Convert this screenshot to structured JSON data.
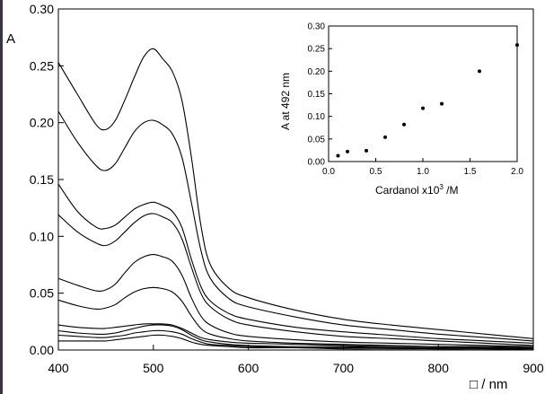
{
  "chart_data": [
    {
      "type": "line",
      "title": "",
      "xlabel": "□ / nm",
      "ylabel": "A",
      "xlim": [
        400,
        900
      ],
      "ylim": [
        0,
        0.3
      ],
      "x_ticks": [
        "400",
        "500",
        "600",
        "700",
        "800",
        "900"
      ],
      "y_ticks": [
        "0.00",
        "0.05",
        "0.10",
        "0.15",
        "0.20",
        "0.25",
        "0.30"
      ],
      "grid": false,
      "legend": "none",
      "series": [
        {
          "x": [
            400,
            420,
            440,
            450,
            460,
            470,
            480,
            490,
            500,
            510,
            520,
            530,
            540,
            550,
            560,
            580,
            600,
            650,
            700,
            750,
            800,
            850,
            900
          ],
          "values": [
            0.253,
            0.225,
            0.198,
            0.194,
            0.202,
            0.22,
            0.24,
            0.258,
            0.265,
            0.256,
            0.245,
            0.22,
            0.17,
            0.11,
            0.075,
            0.054,
            0.046,
            0.035,
            0.027,
            0.022,
            0.018,
            0.014,
            0.01
          ]
        },
        {
          "x": [
            400,
            420,
            440,
            450,
            460,
            470,
            480,
            490,
            500,
            510,
            520,
            530,
            540,
            550,
            560,
            580,
            600,
            650,
            700,
            750,
            800,
            850,
            900
          ],
          "values": [
            0.21,
            0.183,
            0.162,
            0.158,
            0.164,
            0.178,
            0.192,
            0.2,
            0.202,
            0.198,
            0.19,
            0.17,
            0.13,
            0.088,
            0.063,
            0.045,
            0.038,
            0.029,
            0.022,
            0.018,
            0.014,
            0.011,
            0.008
          ]
        },
        {
          "x": [
            400,
            420,
            440,
            450,
            460,
            470,
            480,
            490,
            500,
            510,
            520,
            530,
            540,
            550,
            560,
            580,
            600,
            650,
            700,
            750,
            800,
            850,
            900
          ],
          "values": [
            0.146,
            0.122,
            0.108,
            0.107,
            0.11,
            0.117,
            0.124,
            0.128,
            0.13,
            0.127,
            0.122,
            0.108,
            0.08,
            0.056,
            0.043,
            0.032,
            0.027,
            0.02,
            0.016,
            0.013,
            0.01,
            0.008,
            0.006
          ]
        },
        {
          "x": [
            400,
            420,
            440,
            450,
            460,
            470,
            480,
            490,
            500,
            510,
            520,
            530,
            540,
            550,
            560,
            580,
            600,
            650,
            700,
            750,
            800,
            850,
            900
          ],
          "values": [
            0.119,
            0.104,
            0.094,
            0.092,
            0.096,
            0.104,
            0.112,
            0.118,
            0.12,
            0.117,
            0.112,
            0.098,
            0.073,
            0.05,
            0.038,
            0.027,
            0.022,
            0.016,
            0.012,
            0.01,
            0.008,
            0.006,
            0.004
          ]
        },
        {
          "x": [
            400,
            420,
            440,
            450,
            460,
            470,
            480,
            490,
            500,
            510,
            520,
            530,
            540,
            550,
            560,
            580,
            600,
            650,
            700,
            750,
            800,
            850,
            900
          ],
          "values": [
            0.063,
            0.057,
            0.052,
            0.053,
            0.058,
            0.068,
            0.077,
            0.082,
            0.084,
            0.082,
            0.078,
            0.066,
            0.046,
            0.03,
            0.022,
            0.015,
            0.012,
            0.009,
            0.007,
            0.006,
            0.005,
            0.004,
            0.003
          ]
        },
        {
          "x": [
            400,
            420,
            440,
            450,
            460,
            470,
            480,
            490,
            500,
            510,
            520,
            530,
            540,
            550,
            560,
            580,
            600,
            650,
            700,
            750,
            800,
            850,
            900
          ],
          "values": [
            0.044,
            0.039,
            0.036,
            0.037,
            0.04,
            0.046,
            0.051,
            0.054,
            0.055,
            0.054,
            0.051,
            0.043,
            0.03,
            0.019,
            0.014,
            0.01,
            0.008,
            0.006,
            0.005,
            0.004,
            0.003,
            0.003,
            0.002
          ]
        },
        {
          "x": [
            400,
            420,
            440,
            450,
            460,
            470,
            480,
            490,
            500,
            510,
            520,
            530,
            540,
            550,
            560,
            580,
            600,
            650,
            700,
            750,
            800,
            850,
            900
          ],
          "values": [
            0.022,
            0.02,
            0.019,
            0.019,
            0.02,
            0.021,
            0.022,
            0.023,
            0.023,
            0.023,
            0.022,
            0.019,
            0.015,
            0.011,
            0.009,
            0.007,
            0.006,
            0.005,
            0.004,
            0.003,
            0.003,
            0.002,
            0.002
          ]
        },
        {
          "x": [
            400,
            420,
            440,
            450,
            460,
            470,
            480,
            490,
            500,
            510,
            520,
            530,
            540,
            550,
            560,
            580,
            600,
            650,
            700,
            750,
            800,
            850,
            900
          ],
          "values": [
            0.017,
            0.015,
            0.014,
            0.014,
            0.015,
            0.017,
            0.019,
            0.021,
            0.022,
            0.022,
            0.021,
            0.018,
            0.013,
            0.009,
            0.007,
            0.005,
            0.004,
            0.003,
            0.003,
            0.002,
            0.002,
            0.002,
            0.001
          ]
        },
        {
          "x": [
            400,
            420,
            440,
            450,
            460,
            470,
            480,
            490,
            500,
            510,
            520,
            530,
            540,
            550,
            560,
            580,
            600,
            650,
            700,
            750,
            800,
            850,
            900
          ],
          "values": [
            0.013,
            0.012,
            0.011,
            0.011,
            0.012,
            0.013,
            0.015,
            0.016,
            0.017,
            0.017,
            0.016,
            0.014,
            0.01,
            0.007,
            0.005,
            0.004,
            0.003,
            0.002,
            0.002,
            0.002,
            0.001,
            0.001,
            0.001
          ]
        },
        {
          "x": [
            400,
            420,
            440,
            450,
            460,
            470,
            480,
            490,
            500,
            510,
            520,
            530,
            540,
            550,
            560,
            580,
            600,
            650,
            700,
            750,
            800,
            850,
            900
          ],
          "values": [
            0.008,
            0.008,
            0.008,
            0.008,
            0.009,
            0.01,
            0.011,
            0.012,
            0.013,
            0.013,
            0.012,
            0.01,
            0.007,
            0.005,
            0.004,
            0.003,
            0.002,
            0.002,
            0.001,
            0.001,
            0.001,
            0.001,
            0.0
          ]
        }
      ]
    },
    {
      "type": "scatter",
      "title": "",
      "xlabel": "Cardanol x10",
      "xlabel_superscript": "3",
      "xlabel_suffix": " /M",
      "ylabel": "A at 492 nm",
      "xlim": [
        0,
        2.0
      ],
      "ylim": [
        0,
        0.3
      ],
      "x_ticks": [
        "0.0",
        "0.5",
        "1.0",
        "1.5",
        "2.0"
      ],
      "y_ticks": [
        "0.00",
        "0.05",
        "0.10",
        "0.15",
        "0.20",
        "0.25",
        "0.30"
      ],
      "grid": false,
      "legend": "none",
      "x": [
        0.1,
        0.2,
        0.4,
        0.6,
        0.8,
        1.0,
        1.2,
        1.6,
        2.0
      ],
      "values": [
        0.013,
        0.022,
        0.024,
        0.054,
        0.082,
        0.118,
        0.128,
        0.2,
        0.258
      ]
    }
  ]
}
